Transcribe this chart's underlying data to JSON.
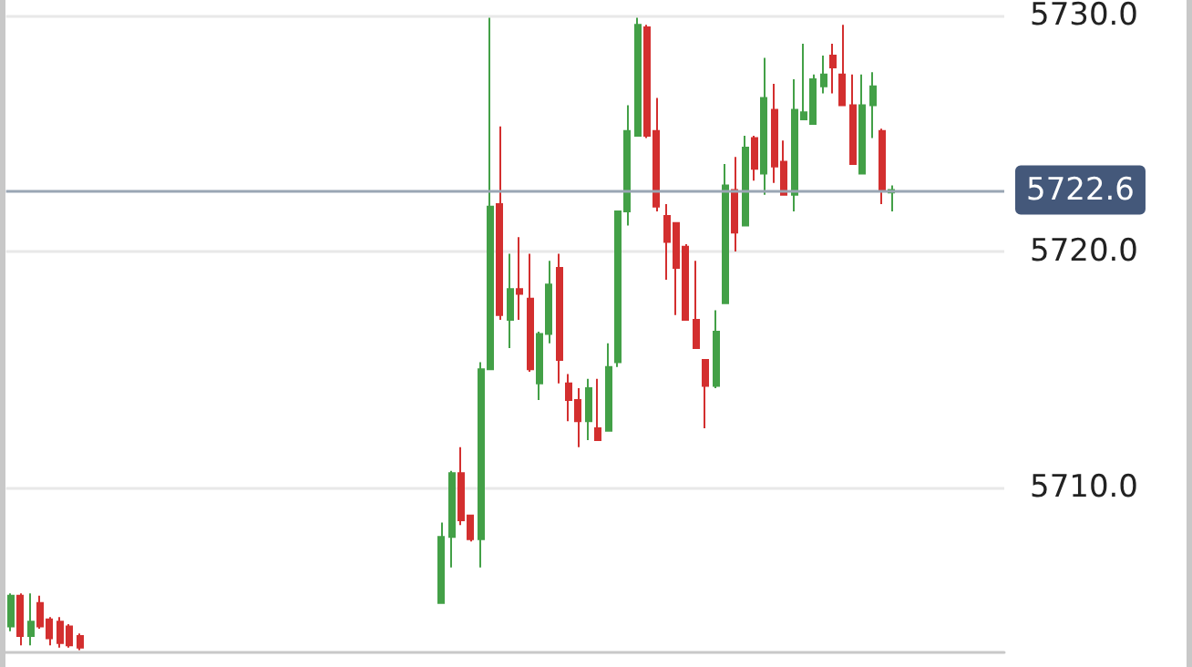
{
  "chart_data": {
    "type": "candlestick",
    "categories": [
      null,
      null,
      null,
      null,
      null,
      null,
      null,
      null,
      null,
      null,
      null,
      null,
      null,
      null,
      null,
      null,
      null,
      null,
      null,
      null,
      null,
      null,
      null,
      null,
      null,
      null,
      null,
      null,
      null,
      null,
      null,
      null,
      null,
      null,
      null,
      null,
      null,
      null,
      null,
      null,
      null,
      null,
      null,
      null,
      null,
      null,
      null,
      null,
      null,
      null,
      null,
      null,
      null,
      null,
      null,
      null,
      null,
      null,
      null,
      null,
      null,
      null,
      null,
      null,
      null,
      null,
      null,
      null,
      null,
      null,
      null,
      null,
      null,
      null,
      null,
      null,
      null,
      null,
      null,
      null,
      null,
      null,
      null,
      null,
      null,
      null,
      null,
      null,
      null,
      null,
      null,
      null,
      null,
      null,
      null,
      null,
      null,
      null,
      null,
      null,
      null,
      null
    ],
    "ohlc": [
      [
        5704.1,
        5705.5,
        5703.9,
        5705.4
      ],
      [
        5705.4,
        5705.5,
        5703.3,
        5703.7
      ],
      [
        5703.7,
        5705.5,
        5703.3,
        5704.3
      ],
      [
        5705.1,
        5705.4,
        5704.0,
        5704.1
      ],
      [
        5704.4,
        5704.5,
        5703.3,
        5703.6
      ],
      [
        5704.3,
        5704.5,
        5703.2,
        5703.4
      ],
      [
        5704.1,
        5704.2,
        5703.2,
        5703.3
      ],
      [
        5703.7,
        5703.8,
        5703.1,
        5703.2
      ],
      null,
      null,
      null,
      null,
      null,
      null,
      null,
      null,
      null,
      null,
      null,
      null,
      null,
      null,
      null,
      null,
      null,
      null,
      null,
      null,
      null,
      null,
      null,
      null,
      null,
      null,
      null,
      null,
      null,
      null,
      null,
      null,
      null,
      null,
      null,
      null,
      [
        5705.1,
        5708.5,
        5705.1,
        5707.9
      ],
      [
        5707.9,
        5710.7,
        5706.6,
        5710.6
      ],
      [
        5710.6,
        5711.7,
        5708.4,
        5708.6
      ],
      [
        5708.8,
        5708.8,
        5707.7,
        5707.8
      ],
      [
        5707.8,
        5715.3,
        5706.6,
        5715.0
      ],
      [
        5715.0,
        5729.9,
        5715.0,
        5721.9
      ],
      [
        5722.0,
        5725.3,
        5717.1,
        5717.3
      ],
      [
        5717.1,
        5719.9,
        5715.9,
        5718.4
      ],
      [
        5718.4,
        5720.6,
        5717.1,
        5718.2
      ],
      [
        5718.0,
        5719.9,
        5714.9,
        5715.0
      ],
      [
        5714.4,
        5716.6,
        5713.7,
        5716.5
      ],
      [
        5716.5,
        5719.6,
        5716.1,
        5718.6
      ],
      [
        5719.3,
        5719.9,
        5714.4,
        5715.4
      ],
      [
        5714.4,
        5714.8,
        5712.8,
        5713.7
      ],
      [
        5713.7,
        5714.2,
        5711.7,
        5712.8
      ],
      [
        5712.8,
        5714.6,
        5712.0,
        5714.2
      ],
      [
        5712.5,
        5714.6,
        5712.0,
        5712.0
      ],
      [
        5712.4,
        5716.1,
        5712.4,
        5715.1
      ],
      [
        5715.3,
        5721.7,
        5715.1,
        5721.7
      ],
      [
        5721.7,
        5726.2,
        5721.1,
        5725.1
      ],
      [
        5724.9,
        5729.9,
        5724.9,
        5729.6
      ],
      [
        5729.5,
        5729.6,
        5724.8,
        5724.9
      ],
      [
        5725.1,
        5726.5,
        5721.7,
        5721.9
      ],
      [
        5721.5,
        5722.0,
        5718.8,
        5720.4
      ],
      [
        5721.2,
        5721.2,
        5717.3,
        5719.3
      ],
      [
        5720.2,
        5720.3,
        5717.1,
        5717.1
      ],
      [
        5717.1,
        5719.6,
        5715.9,
        5715.9
      ],
      [
        5715.4,
        5715.4,
        5712.5,
        5714.3
      ],
      [
        5714.3,
        5717.5,
        5714.2,
        5716.6
      ],
      [
        5717.8,
        5723.7,
        5717.8,
        5722.8
      ],
      [
        5722.6,
        5724.0,
        5720.0,
        5720.8
      ],
      [
        5721.1,
        5724.9,
        5721.1,
        5724.4
      ],
      [
        5724.8,
        5724.9,
        5723.0,
        5723.5
      ],
      [
        5723.3,
        5728.2,
        5722.4,
        5726.5
      ],
      [
        5726.0,
        5727.1,
        5722.9,
        5723.6
      ],
      [
        5723.8,
        5724.7,
        5722.4,
        5722.4
      ],
      [
        5722.4,
        5727.3,
        5721.7,
        5726.0
      ],
      [
        5725.6,
        5728.8,
        5725.6,
        5725.9
      ],
      [
        5725.4,
        5727.5,
        5725.4,
        5727.3
      ],
      [
        5727.0,
        5728.3,
        5726.7,
        5727.5
      ],
      [
        5728.3,
        5728.8,
        5726.7,
        5727.8
      ],
      [
        5727.5,
        5729.6,
        5726.2,
        5726.2
      ],
      [
        5726.2,
        5727.5,
        5723.7,
        5723.7
      ],
      [
        5723.3,
        5727.5,
        5723.3,
        5726.2
      ],
      [
        5726.2,
        5727.6,
        5724.8,
        5727.0
      ],
      [
        5725.1,
        5725.2,
        5722.0,
        5722.6
      ],
      [
        5722.5,
        5722.8,
        5721.7,
        5722.6
      ],
      null,
      null,
      null,
      null,
      null,
      null,
      null,
      null,
      null,
      null,
      null
    ],
    "ylim": [
      5703,
      5730
    ],
    "yticks": [
      {
        "value": 5710,
        "label": "5710.0"
      },
      {
        "value": 5720,
        "label": "5720.0"
      },
      {
        "value": 5730,
        "label": "5730.0"
      }
    ],
    "grid": "y",
    "ref_lines": [
      {
        "axis": "y",
        "value": 5722.6,
        "label": "5722.6",
        "color": "#9aa6b4"
      }
    ]
  }
}
